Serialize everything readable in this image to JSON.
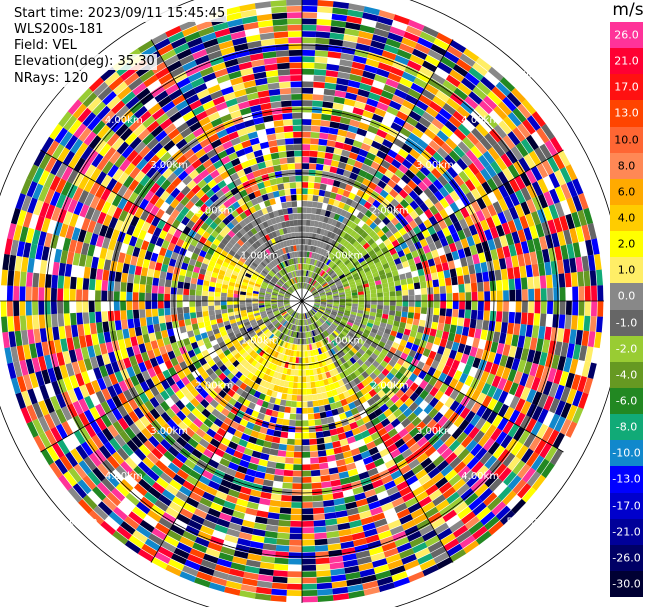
{
  "header": {
    "start_time": "Start time: 2023/09/11 15:45:45",
    "site": "WLS200s-181",
    "field": "Field: VEL",
    "elevation": "Elevation(deg): 35.30",
    "nrays": "NRays: 120"
  },
  "colorbar": {
    "unit": "m/s",
    "levels": [
      {
        "label": "26.0",
        "color": "#ff3399"
      },
      {
        "label": "21.0",
        "color": "#ff0033"
      },
      {
        "label": "17.0",
        "color": "#ff1111"
      },
      {
        "label": "13.0",
        "color": "#ff4400"
      },
      {
        "label": "10.0",
        "color": "#ff6633"
      },
      {
        "label": "8.0",
        "color": "#ff8855"
      },
      {
        "label": "6.0",
        "color": "#ffaa00"
      },
      {
        "label": "4.0",
        "color": "#ffcc00"
      },
      {
        "label": "2.0",
        "color": "#ffff00"
      },
      {
        "label": "1.0",
        "color": "#ffee66"
      },
      {
        "label": "0.0",
        "color": "#888888"
      },
      {
        "label": "-1.0",
        "color": "#666666"
      },
      {
        "label": "-2.0",
        "color": "#99cc33"
      },
      {
        "label": "-4.0",
        "color": "#669922"
      },
      {
        "label": "-6.0",
        "color": "#228822"
      },
      {
        "label": "-8.0",
        "color": "#11aa77"
      },
      {
        "label": "-10.0",
        "color": "#1188cc"
      },
      {
        "label": "-13.0",
        "color": "#0000ff"
      },
      {
        "label": "-17.0",
        "color": "#0000cc"
      },
      {
        "label": "-21.0",
        "color": "#000099"
      },
      {
        "label": "-26.0",
        "color": "#000066"
      },
      {
        "label": "-30.0",
        "color": "#000033"
      }
    ]
  },
  "range_labels": [
    "1.00km",
    "2.00km",
    "3.00km",
    "4.00km",
    "5.00km"
  ]
}
